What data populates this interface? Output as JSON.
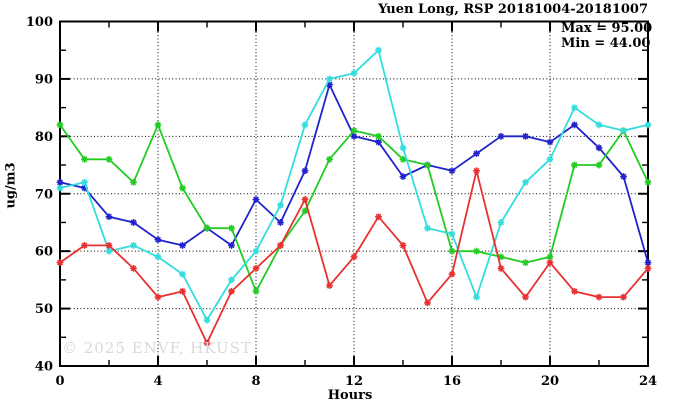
{
  "title": "Yuen Long, RSP 20181004-20181007",
  "stats": {
    "max_label": "Max = 95.00",
    "min_label": "Min = 44.00"
  },
  "watermark": "© 2025 ENVF, HKUST",
  "chart_data": {
    "type": "line",
    "title": "Yuen Long, RSP 20181004-20181007",
    "xlabel": "Hours",
    "ylabel": "ug/m3",
    "xlim": [
      0,
      24
    ],
    "ylim": [
      40,
      100
    ],
    "x": [
      0,
      1,
      2,
      3,
      4,
      5,
      6,
      7,
      8,
      9,
      10,
      11,
      12,
      13,
      14,
      15,
      16,
      17,
      18,
      19,
      20,
      21,
      22,
      23,
      24
    ],
    "xticks_labeled": [
      0,
      4,
      8,
      12,
      16,
      20,
      24
    ],
    "xtick_minor_step": 2,
    "yticks_labeled": [
      40,
      50,
      60,
      70,
      80,
      90,
      100
    ],
    "ytick_minor_step": 5,
    "grid": {
      "style": "dotted",
      "x_lines": [
        4,
        8,
        12,
        16,
        20
      ],
      "y_lines": [
        50,
        60,
        70,
        80,
        90
      ]
    },
    "legend": "none",
    "annotations": {
      "max": 95.0,
      "min": 44.0
    },
    "series": [
      {
        "name": "blue",
        "color": "#2222cc",
        "values": [
          72,
          71,
          66,
          65,
          62,
          61,
          64,
          61,
          69,
          65,
          74,
          89,
          80,
          79,
          73,
          75,
          74,
          77,
          80,
          80,
          79,
          82,
          78,
          73,
          58
        ]
      },
      {
        "name": "green",
        "color": "#22cc22",
        "values": [
          82,
          76,
          76,
          72,
          82,
          71,
          64,
          64,
          53,
          61,
          67,
          76,
          81,
          80,
          76,
          75,
          60,
          60,
          59,
          58,
          59,
          75,
          75,
          81,
          72
        ]
      },
      {
        "name": "cyan",
        "color": "#33dddd",
        "values": [
          71,
          72,
          60,
          61,
          59,
          56,
          48,
          55,
          60,
          68,
          82,
          90,
          91,
          95,
          78,
          64,
          63,
          52,
          65,
          72,
          76,
          85,
          82,
          81,
          82
        ]
      },
      {
        "name": "red",
        "color": "#e83030",
        "values": [
          58,
          61,
          61,
          57,
          52,
          53,
          44,
          53,
          57,
          61,
          69,
          54,
          59,
          66,
          61,
          51,
          56,
          74,
          57,
          52,
          58,
          53,
          52,
          52,
          57
        ]
      }
    ]
  }
}
